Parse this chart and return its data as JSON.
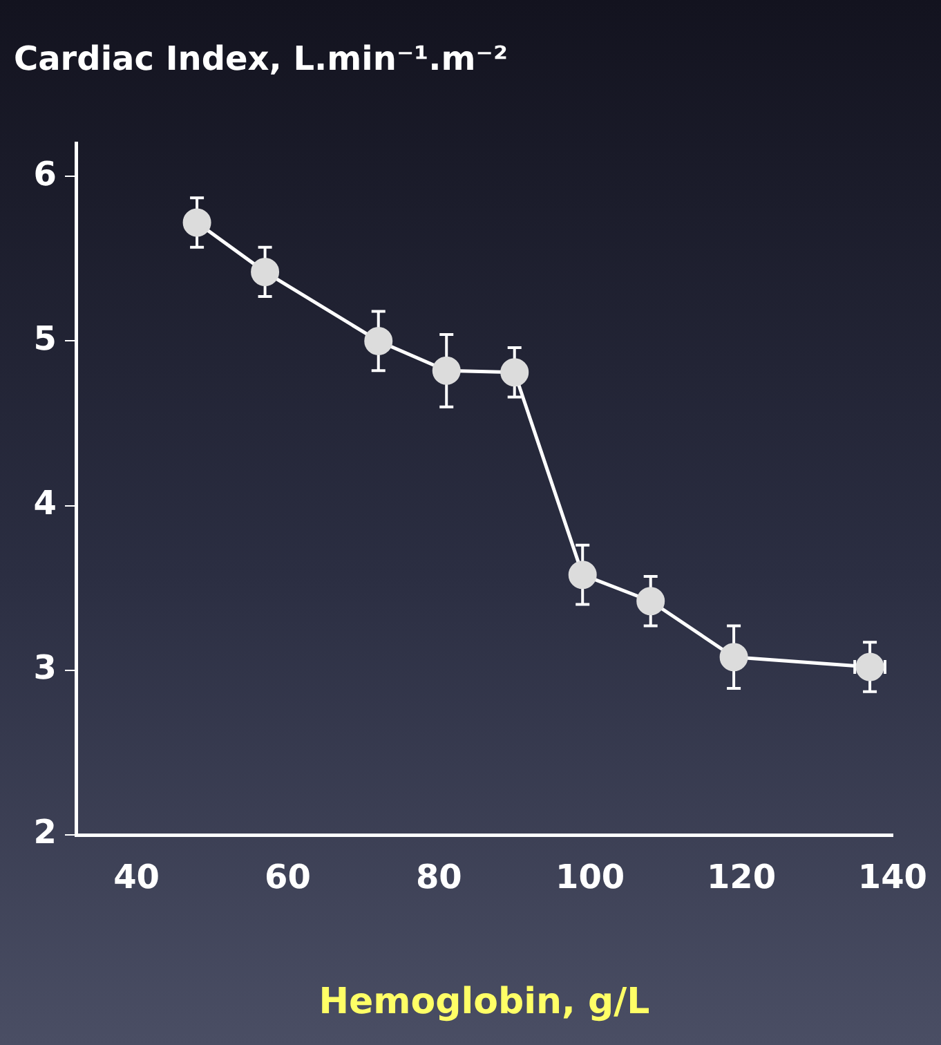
{
  "chart_data": {
    "type": "line",
    "title": "Cardiac Index, L.min⁻¹.m⁻²",
    "xlabel": "Hemoglobin, g/L",
    "x": [
      48,
      57,
      72,
      81,
      90,
      99,
      108,
      119,
      137
    ],
    "series": [
      {
        "color": "#ffffff",
        "values": [
          5.72,
          5.42,
          5.0,
          4.82,
          4.81,
          3.58,
          3.42,
          3.08,
          3.02
        ],
        "errors": [
          0.15,
          0.15,
          0.18,
          0.22,
          0.15,
          0.18,
          0.15,
          0.19,
          0.15
        ],
        "xerrors": [
          null,
          null,
          null,
          null,
          null,
          null,
          null,
          null,
          2
        ]
      }
    ],
    "xlim": [
      32,
      140
    ],
    "xticks": [
      40,
      60,
      80,
      100,
      120,
      140
    ],
    "ylim": [
      2,
      6.2
    ],
    "yticks": [
      2,
      3,
      4,
      5,
      6
    ],
    "grid": false,
    "legend": false,
    "marker": "circle",
    "line_style": "solid"
  }
}
